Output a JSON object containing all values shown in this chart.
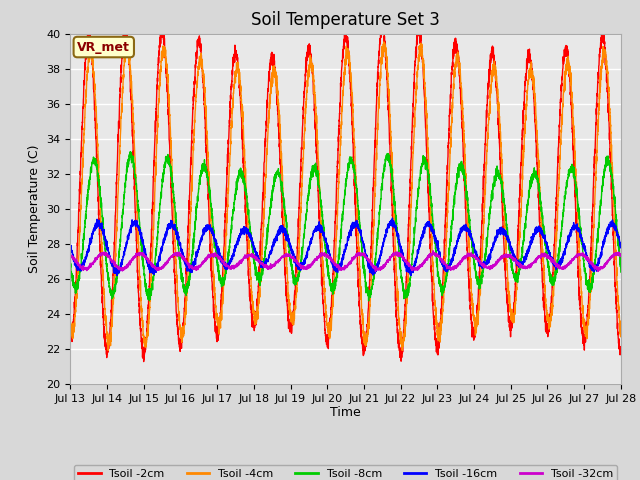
{
  "title": "Soil Temperature Set 3",
  "xlabel": "Time",
  "ylabel": "Soil Temperature (C)",
  "ylim": [
    20,
    40
  ],
  "x_tick_labels": [
    "Jul 13",
    "Jul 14",
    "Jul 15",
    "Jul 16",
    "Jul 17",
    "Jul 18",
    "Jul 19",
    "Jul 20",
    "Jul 21",
    "Jul 22",
    "Jul 23",
    "Jul 24",
    "Jul 25",
    "Jul 26",
    "Jul 27",
    "Jul 28"
  ],
  "colors": {
    "Tsoil -2cm": "#ff0000",
    "Tsoil -4cm": "#ff8800",
    "Tsoil -8cm": "#00cc00",
    "Tsoil -16cm": "#0000ff",
    "Tsoil -32cm": "#cc00cc"
  },
  "annotation_text": "VR_met",
  "background_color": "#d8d8d8",
  "plot_bg_color": "#e8e8e8",
  "grid_color": "#ffffff",
  "title_fontsize": 12,
  "label_fontsize": 9,
  "tick_fontsize": 8
}
